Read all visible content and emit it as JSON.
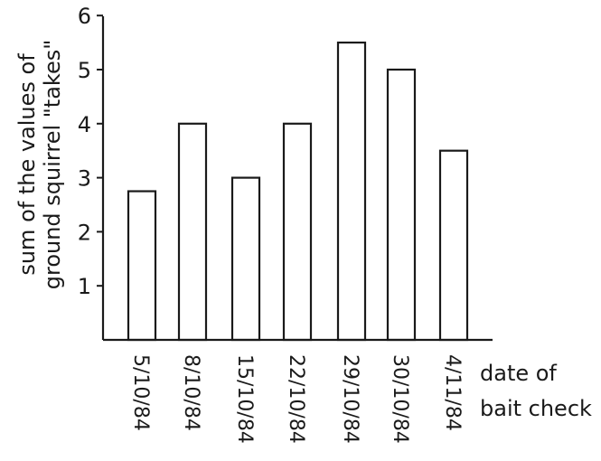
{
  "chart_data": {
    "type": "bar",
    "categories": [
      "5/10/84",
      "8/10/84",
      "15/10/84",
      "22/10/84",
      "29/10/84",
      "30/10/84",
      "4/11/84"
    ],
    "values": [
      2.75,
      4.0,
      3.0,
      4.0,
      5.5,
      5.0,
      3.5
    ],
    "title": "",
    "xlabel": [
      "date of",
      "bait check"
    ],
    "ylabel": [
      "sum of the values of",
      "ground squirrel \"takes\""
    ],
    "yticks": [
      "1",
      "2",
      "3",
      "4",
      "5",
      "6"
    ],
    "ylim": [
      0,
      6
    ],
    "grid": false,
    "legend": "none"
  }
}
